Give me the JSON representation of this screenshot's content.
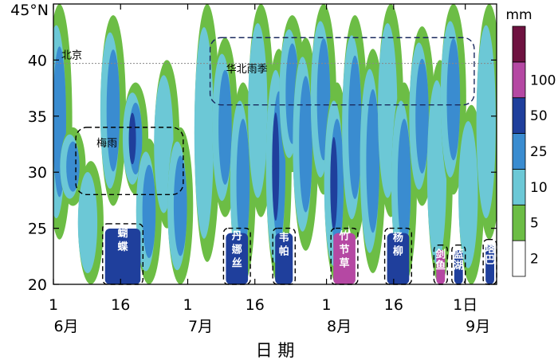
{
  "chart_data": {
    "type": "heatmap",
    "title": "",
    "xlabel": "日 期",
    "ylabel": "",
    "y_unit_label": "45°N",
    "ylim": [
      20,
      45
    ],
    "y_ticks": [
      20,
      25,
      30,
      35,
      40
    ],
    "x_range_days": [
      1,
      100
    ],
    "x_ticks": [
      {
        "day": 1,
        "label": "1",
        "month": "6月"
      },
      {
        "day": 16,
        "label": "16",
        "month": ""
      },
      {
        "day": 31,
        "label": "1",
        "month": "7月"
      },
      {
        "day": 46,
        "label": "16",
        "month": ""
      },
      {
        "day": 62,
        "label": "1",
        "month": "8月"
      },
      {
        "day": 77,
        "label": "16",
        "month": ""
      },
      {
        "day": 93,
        "label": "1日",
        "month": "9月"
      }
    ],
    "reference_line": {
      "label": "北京",
      "lat": 39.7
    },
    "colorbar": {
      "unit": "mm",
      "levels": [
        2,
        5,
        10,
        25,
        50,
        100
      ],
      "colors": [
        "#ffffff",
        "#6cbd45",
        "#6cc8d6",
        "#3a8cd0",
        "#1f3f9c",
        "#b548a3",
        "#6e1240"
      ]
    },
    "regions": [
      {
        "label": "梅雨",
        "day_start": 6,
        "day_end": 30,
        "lat_start": 28,
        "lat_end": 34
      },
      {
        "label": "华北雨季",
        "day_start": 36,
        "day_end": 95,
        "lat_start": 36,
        "lat_end": 42
      }
    ],
    "typhoons": [
      {
        "label": "蝴蝶",
        "day_start": 12,
        "day_end": 21,
        "lat_top": 25.4,
        "color": "#1f3f9c"
      },
      {
        "label": "丹娜丝",
        "day_start": 39,
        "day_end": 45,
        "lat_top": 25.0,
        "color": "#1f3f9c"
      },
      {
        "label": "韦帕",
        "day_start": 50,
        "day_end": 55,
        "lat_top": 25.0,
        "color": "#1f3f9c"
      },
      {
        "label": "竹节草",
        "day_start": 63,
        "day_end": 69,
        "lat_top": 25.0,
        "color": "#b548a3"
      },
      {
        "label": "杨柳",
        "day_start": 75,
        "day_end": 81,
        "lat_top": 25.0,
        "color": "#1f3f9c"
      },
      {
        "label": "剑鱼",
        "day_start": 86,
        "day_end": 89,
        "lat_top": 23.5,
        "color": "#b548a3"
      },
      {
        "label": "蓝湖",
        "day_start": 90,
        "day_end": 93,
        "lat_top": 23.5,
        "color": "#1f3f9c"
      },
      {
        "label": "塔巴",
        "day_start": 97,
        "day_end": 100,
        "lat_top": 24.0,
        "color": "#1f3f9c"
      }
    ],
    "rain_bands": [
      {
        "day_center": 2,
        "lat_start": 24,
        "lat_end": 45,
        "intensity": 3
      },
      {
        "day_center": 5,
        "lat_start": 27,
        "lat_end": 34,
        "intensity": 3
      },
      {
        "day_center": 9,
        "lat_start": 20,
        "lat_end": 31,
        "intensity": 2
      },
      {
        "day_center": 14,
        "lat_start": 27,
        "lat_end": 44,
        "intensity": 3
      },
      {
        "day_center": 19,
        "lat_start": 28,
        "lat_end": 38,
        "intensity": 4
      },
      {
        "day_center": 22,
        "lat_start": 20,
        "lat_end": 33,
        "intensity": 3
      },
      {
        "day_center": 26,
        "lat_start": 25,
        "lat_end": 40,
        "intensity": 2
      },
      {
        "day_center": 29,
        "lat_start": 20,
        "lat_end": 34,
        "intensity": 3
      },
      {
        "day_center": 35,
        "lat_start": 22,
        "lat_end": 45,
        "intensity": 2
      },
      {
        "day_center": 39,
        "lat_start": 26,
        "lat_end": 42,
        "intensity": 3
      },
      {
        "day_center": 43,
        "lat_start": 20,
        "lat_end": 38,
        "intensity": 3
      },
      {
        "day_center": 47,
        "lat_start": 26,
        "lat_end": 45,
        "intensity": 2
      },
      {
        "day_center": 51,
        "lat_start": 20,
        "lat_end": 41,
        "intensity": 4
      },
      {
        "day_center": 54,
        "lat_start": 30,
        "lat_end": 44,
        "intensity": 3
      },
      {
        "day_center": 57,
        "lat_start": 23,
        "lat_end": 42,
        "intensity": 3
      },
      {
        "day_center": 61,
        "lat_start": 28,
        "lat_end": 45,
        "intensity": 3
      },
      {
        "day_center": 64,
        "lat_start": 20,
        "lat_end": 38,
        "intensity": 4
      },
      {
        "day_center": 68,
        "lat_start": 24,
        "lat_end": 44,
        "intensity": 3
      },
      {
        "day_center": 72,
        "lat_start": 21,
        "lat_end": 41,
        "intensity": 3
      },
      {
        "day_center": 76,
        "lat_start": 26,
        "lat_end": 45,
        "intensity": 2
      },
      {
        "day_center": 79,
        "lat_start": 20,
        "lat_end": 38,
        "intensity": 3
      },
      {
        "day_center": 83,
        "lat_start": 27,
        "lat_end": 43,
        "intensity": 3
      },
      {
        "day_center": 87,
        "lat_start": 20,
        "lat_end": 40,
        "intensity": 2
      },
      {
        "day_center": 90,
        "lat_start": 28,
        "lat_end": 45,
        "intensity": 3
      },
      {
        "day_center": 94,
        "lat_start": 20,
        "lat_end": 36,
        "intensity": 2
      },
      {
        "day_center": 98,
        "lat_start": 24,
        "lat_end": 45,
        "intensity": 2
      }
    ]
  }
}
